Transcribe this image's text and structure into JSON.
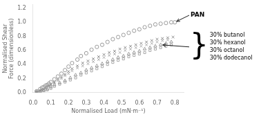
{
  "chart_data": {
    "type": "scatter",
    "xlabel": "Normalised Load (mN·m⁻¹)",
    "ylabel": "Normalised Shear Force (dimensionless)",
    "xlim": [
      0,
      0.85
    ],
    "ylim": [
      0,
      1.25
    ],
    "xticks": [
      {
        "value": 0,
        "label": "0.0"
      },
      0.1,
      0.2,
      0.3,
      0.4,
      0.5,
      0.6,
      0.7,
      0.8
    ],
    "yticks": [
      {
        "value": 0,
        "label": "0.0"
      },
      0.2,
      0.4,
      0.6,
      0.8,
      {
        "value": 1,
        "label": "1.0"
      },
      1.2
    ],
    "grid": false,
    "series": [
      {
        "color": "#999999",
        "marker": "circle",
        "x": [
          0.02,
          0.04,
          0.05,
          0.06,
          0.07,
          0.08,
          0.09,
          0.1,
          0.12,
          0.14,
          0.16,
          0.18,
          0.2,
          0.22,
          0.25,
          0.27,
          0.3,
          0.33,
          0.36,
          0.39,
          0.42,
          0.45,
          0.48,
          0.51,
          0.54,
          0.57,
          0.6,
          0.63,
          0.66,
          0.69,
          0.72,
          0.75,
          0.78,
          0.8
        ],
        "values": [
          0.02,
          0.05,
          0.07,
          0.08,
          0.1,
          0.11,
          0.13,
          0.15,
          0.19,
          0.23,
          0.27,
          0.32,
          0.37,
          0.42,
          0.47,
          0.52,
          0.56,
          0.61,
          0.65,
          0.68,
          0.72,
          0.76,
          0.79,
          0.82,
          0.85,
          0.88,
          0.9,
          0.93,
          0.95,
          0.97,
          0.98,
          0.99,
          1.0,
          1.0
        ]
      },
      {
        "color": "#888888",
        "marker": "x",
        "x": [
          0.02,
          0.04,
          0.05,
          0.06,
          0.07,
          0.08,
          0.09,
          0.1,
          0.12,
          0.14,
          0.16,
          0.18,
          0.2,
          0.22,
          0.25,
          0.28,
          0.31,
          0.34,
          0.37,
          0.4,
          0.43,
          0.46,
          0.49,
          0.52,
          0.55,
          0.58,
          0.61,
          0.64,
          0.67,
          0.7,
          0.73,
          0.76,
          0.79
        ],
        "values": [
          0.01,
          0.03,
          0.04,
          0.05,
          0.07,
          0.09,
          0.1,
          0.12,
          0.15,
          0.19,
          0.22,
          0.26,
          0.3,
          0.34,
          0.38,
          0.42,
          0.45,
          0.48,
          0.51,
          0.54,
          0.57,
          0.59,
          0.62,
          0.64,
          0.66,
          0.68,
          0.7,
          0.72,
          0.74,
          0.76,
          0.77,
          0.78,
          0.79
        ]
      },
      {
        "color": "#aaaaaa",
        "marker": "x",
        "x": [
          0.02,
          0.04,
          0.05,
          0.06,
          0.07,
          0.08,
          0.09,
          0.1,
          0.12,
          0.14,
          0.16,
          0.18,
          0.2,
          0.22,
          0.25,
          0.28,
          0.31,
          0.34,
          0.37,
          0.4,
          0.43,
          0.46,
          0.49,
          0.52,
          0.55,
          0.58,
          0.61,
          0.64,
          0.67,
          0.7,
          0.73,
          0.76
        ],
        "values": [
          0.01,
          0.02,
          0.03,
          0.04,
          0.06,
          0.07,
          0.09,
          0.11,
          0.14,
          0.17,
          0.2,
          0.24,
          0.27,
          0.31,
          0.35,
          0.38,
          0.41,
          0.44,
          0.47,
          0.5,
          0.53,
          0.55,
          0.57,
          0.6,
          0.62,
          0.64,
          0.66,
          0.68,
          0.7,
          0.72,
          0.74,
          0.75
        ]
      },
      {
        "color": "#999999",
        "marker": "triangle",
        "x": [
          0.02,
          0.04,
          0.06,
          0.08,
          0.1,
          0.12,
          0.15,
          0.18,
          0.21,
          0.24,
          0.27,
          0.3,
          0.33,
          0.36,
          0.39,
          0.42,
          0.45,
          0.48,
          0.51,
          0.54,
          0.57,
          0.6,
          0.63,
          0.66,
          0.69,
          0.72,
          0.75,
          0.78
        ],
        "values": [
          0.01,
          0.02,
          0.03,
          0.05,
          0.08,
          0.11,
          0.14,
          0.17,
          0.21,
          0.25,
          0.28,
          0.32,
          0.35,
          0.38,
          0.41,
          0.44,
          0.47,
          0.5,
          0.52,
          0.55,
          0.57,
          0.59,
          0.62,
          0.64,
          0.66,
          0.68,
          0.7,
          0.72
        ]
      },
      {
        "color": "#aaaaaa",
        "marker": "square",
        "x": [
          0.02,
          0.04,
          0.06,
          0.08,
          0.1,
          0.12,
          0.15,
          0.18,
          0.21,
          0.24,
          0.27,
          0.3,
          0.33,
          0.36,
          0.39,
          0.42,
          0.45,
          0.48,
          0.51,
          0.54,
          0.57,
          0.6,
          0.63,
          0.66,
          0.69,
          0.72,
          0.75,
          0.78
        ],
        "values": [
          0.01,
          0.02,
          0.03,
          0.04,
          0.06,
          0.09,
          0.12,
          0.15,
          0.18,
          0.21,
          0.25,
          0.28,
          0.31,
          0.34,
          0.37,
          0.4,
          0.43,
          0.46,
          0.48,
          0.51,
          0.53,
          0.55,
          0.57,
          0.6,
          0.62,
          0.64,
          0.66,
          0.68
        ]
      }
    ],
    "annotations": [
      {
        "text": "PAN",
        "x": 0.8,
        "y": 1.0
      },
      {
        "text": "30% butanol\n30% hexanol\n30% octanol\n30% dodecanol",
        "bracket": "}",
        "x": 0.72,
        "y": 0.68
      }
    ]
  }
}
